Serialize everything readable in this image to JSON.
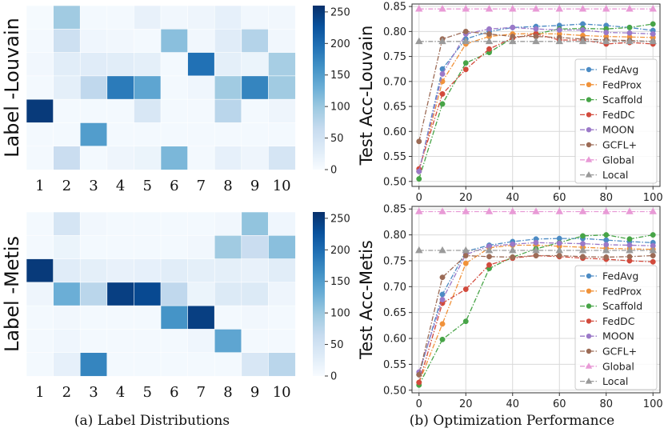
{
  "captions": {
    "left": "(a) Label Distributions",
    "right": "(b) Optimization Performance"
  },
  "colors": {
    "FedAvg": "#4C8BC4",
    "FedProx": "#F0923A",
    "Scaffold": "#47A447",
    "FedDC": "#D24A3C",
    "MOON": "#9B79C8",
    "GCFL+": "#9C6B56",
    "Global": "#E89AD6",
    "Local": "#9A9A9A"
  },
  "chart_data": [
    {
      "type": "heatmap",
      "title": "",
      "ylabel": "Label -Louvain",
      "categories": [
        "1",
        "2",
        "3",
        "4",
        "5",
        "6",
        "7",
        "8",
        "9",
        "10"
      ],
      "rows": 7,
      "colorbar": {
        "min": 0,
        "max": 260,
        "ticks": [
          0,
          50,
          100,
          150,
          200,
          250
        ]
      },
      "values": [
        [
          3,
          95,
          5,
          5,
          20,
          8,
          12,
          22,
          8,
          8
        ],
        [
          5,
          55,
          10,
          8,
          5,
          110,
          8,
          30,
          80,
          8
        ],
        [
          8,
          28,
          30,
          28,
          25,
          5,
          195,
          25,
          15,
          90
        ],
        [
          5,
          25,
          70,
          185,
          140,
          5,
          10,
          95,
          175,
          95
        ],
        [
          250,
          5,
          5,
          5,
          40,
          5,
          5,
          75,
          5,
          12
        ],
        [
          5,
          5,
          150,
          5,
          5,
          5,
          5,
          5,
          5,
          5
        ],
        [
          5,
          60,
          5,
          12,
          15,
          120,
          5,
          22,
          12,
          45
        ]
      ]
    },
    {
      "type": "heatmap",
      "title": "",
      "ylabel": "Label -Metis",
      "categories": [
        "1",
        "2",
        "3",
        "4",
        "5",
        "6",
        "7",
        "8",
        "9",
        "10"
      ],
      "rows": 7,
      "colorbar": {
        "min": 0,
        "max": 260,
        "ticks": [
          0,
          50,
          100,
          150,
          200,
          250
        ]
      },
      "values": [
        [
          5,
          45,
          8,
          5,
          5,
          5,
          5,
          8,
          105,
          10
        ],
        [
          5,
          15,
          5,
          5,
          5,
          5,
          8,
          95,
          60,
          110
        ],
        [
          250,
          30,
          25,
          20,
          22,
          28,
          25,
          25,
          20,
          28
        ],
        [
          12,
          130,
          75,
          245,
          235,
          70,
          15,
          35,
          35,
          12
        ],
        [
          5,
          8,
          5,
          5,
          5,
          160,
          245,
          5,
          8,
          5
        ],
        [
          5,
          10,
          5,
          5,
          5,
          5,
          10,
          140,
          5,
          5
        ],
        [
          5,
          22,
          175,
          5,
          5,
          5,
          5,
          5,
          40,
          75
        ]
      ]
    },
    {
      "type": "line",
      "ylabel": "Test Acc-Louvain",
      "xlabel": "",
      "xlim": [
        -3,
        103
      ],
      "ylim": [
        0.49,
        0.855
      ],
      "xticks": [
        0,
        20,
        40,
        60,
        80,
        100
      ],
      "yticks": [
        0.5,
        0.55,
        0.6,
        0.65,
        0.7,
        0.75,
        0.8,
        0.85
      ],
      "x": [
        0,
        10,
        20,
        30,
        40,
        50,
        60,
        70,
        80,
        90,
        100
      ],
      "series": [
        {
          "name": "FedAvg",
          "marker": "circle",
          "dash": "dashdot",
          "values": [
            0.52,
            0.725,
            0.785,
            0.8,
            0.808,
            0.81,
            0.812,
            0.815,
            0.812,
            0.808,
            0.802
          ]
        },
        {
          "name": "FedProx",
          "marker": "circle",
          "dash": "dashdot",
          "values": [
            0.52,
            0.7,
            0.775,
            0.79,
            0.795,
            0.796,
            0.795,
            0.792,
            0.79,
            0.789,
            0.788
          ]
        },
        {
          "name": "Scaffold",
          "marker": "circle",
          "dash": "dashdot",
          "values": [
            0.505,
            0.655,
            0.737,
            0.758,
            0.787,
            0.795,
            0.805,
            0.806,
            0.805,
            0.808,
            0.815
          ]
        },
        {
          "name": "FedDC",
          "marker": "circle",
          "dash": "dashdot",
          "values": [
            0.525,
            0.675,
            0.724,
            0.765,
            0.787,
            0.795,
            0.783,
            0.783,
            0.775,
            0.778,
            0.775
          ]
        },
        {
          "name": "MOON",
          "marker": "circle",
          "dash": "dashdot",
          "values": [
            0.52,
            0.715,
            0.795,
            0.805,
            0.808,
            0.805,
            0.803,
            0.803,
            0.798,
            0.797,
            0.795
          ]
        },
        {
          "name": "GCFL+",
          "marker": "circle",
          "dash": "dashdot",
          "values": [
            0.58,
            0.785,
            0.8,
            0.795,
            0.79,
            0.79,
            0.788,
            0.785,
            0.783,
            0.782,
            0.78
          ]
        },
        {
          "name": "Global",
          "marker": "triangle",
          "dash": "dashdot",
          "values": [
            0.845,
            0.845,
            0.845,
            0.845,
            0.845,
            0.845,
            0.845,
            0.845,
            0.845,
            0.845,
            0.845
          ]
        },
        {
          "name": "Local",
          "marker": "triangle",
          "dash": "dashdot",
          "values": [
            0.78,
            0.78,
            0.78,
            0.78,
            0.78,
            0.78,
            0.78,
            0.78,
            0.78,
            0.78,
            0.78
          ]
        }
      ],
      "legend": "right"
    },
    {
      "type": "line",
      "ylabel": "Test Acc-Metis",
      "xlabel": "",
      "xlim": [
        -3,
        103
      ],
      "ylim": [
        0.495,
        0.855
      ],
      "xticks": [
        0,
        20,
        40,
        60,
        80,
        100
      ],
      "yticks": [
        0.5,
        0.55,
        0.6,
        0.65,
        0.7,
        0.75,
        0.8,
        0.85
      ],
      "x": [
        0,
        10,
        20,
        30,
        40,
        50,
        60,
        70,
        80,
        90,
        100
      ],
      "series": [
        {
          "name": "FedAvg",
          "marker": "circle",
          "dash": "dashdot",
          "values": [
            0.53,
            0.685,
            0.768,
            0.78,
            0.787,
            0.792,
            0.793,
            0.793,
            0.79,
            0.787,
            0.785
          ]
        },
        {
          "name": "FedProx",
          "marker": "circle",
          "dash": "dashdot",
          "values": [
            0.515,
            0.628,
            0.745,
            0.775,
            0.78,
            0.78,
            0.778,
            0.776,
            0.774,
            0.773,
            0.772
          ]
        },
        {
          "name": "Scaffold",
          "marker": "circle",
          "dash": "dashdot",
          "values": [
            0.51,
            0.598,
            0.633,
            0.735,
            0.757,
            0.773,
            0.785,
            0.798,
            0.8,
            0.792,
            0.8
          ]
        },
        {
          "name": "FedDC",
          "marker": "circle",
          "dash": "dashdot",
          "values": [
            0.515,
            0.668,
            0.695,
            0.742,
            0.755,
            0.76,
            0.758,
            0.755,
            0.753,
            0.75,
            0.748
          ]
        },
        {
          "name": "MOON",
          "marker": "circle",
          "dash": "dashdot",
          "values": [
            0.535,
            0.675,
            0.762,
            0.778,
            0.782,
            0.785,
            0.784,
            0.783,
            0.781,
            0.78,
            0.779
          ]
        },
        {
          "name": "GCFL+",
          "marker": "circle",
          "dash": "dashdot",
          "values": [
            0.53,
            0.718,
            0.76,
            0.758,
            0.757,
            0.76,
            0.76,
            0.758,
            0.757,
            0.758,
            0.76
          ]
        },
        {
          "name": "Global",
          "marker": "triangle",
          "dash": "dashdot",
          "values": [
            0.845,
            0.845,
            0.845,
            0.845,
            0.845,
            0.845,
            0.845,
            0.845,
            0.845,
            0.845,
            0.845
          ]
        },
        {
          "name": "Local",
          "marker": "triangle",
          "dash": "dashdot",
          "values": [
            0.77,
            0.77,
            0.77,
            0.77,
            0.77,
            0.77,
            0.77,
            0.77,
            0.77,
            0.77,
            0.77
          ]
        }
      ],
      "legend": "right"
    }
  ]
}
